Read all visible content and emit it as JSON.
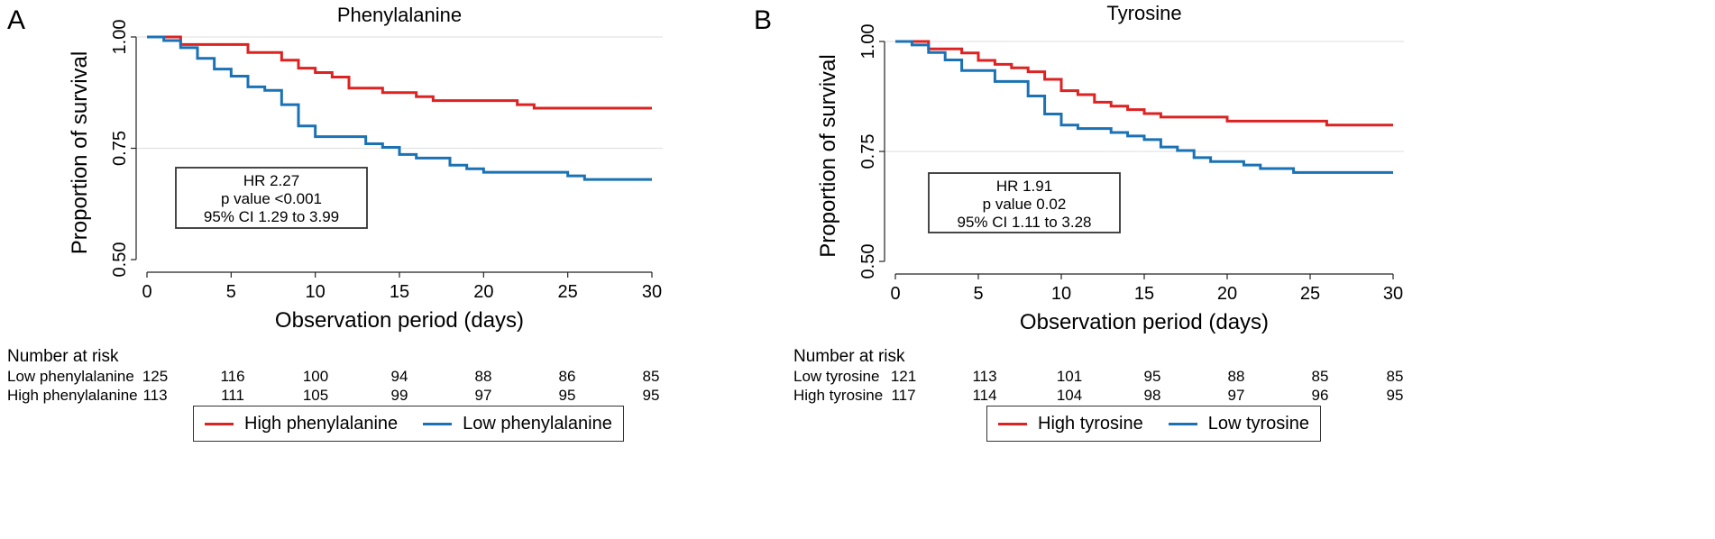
{
  "chart_data": [
    {
      "type": "line",
      "panel_letter": "A",
      "title": "Phenylalanine",
      "xlabel": "Observation period (days)",
      "ylabel": "Proportion of survival",
      "xlim": [
        0,
        30
      ],
      "ylim": [
        0.5,
        1.0
      ],
      "x_ticks": [
        0,
        5,
        10,
        15,
        20,
        25,
        30
      ],
      "y_ticks": [
        0.5,
        0.75,
        1.0
      ],
      "y_tick_labels": [
        "0.50",
        "0.75",
        "1.00"
      ],
      "gridlines": "horizontal",
      "annotation": [
        "HR 2.27",
        "p value <0.001",
        "95% CI  1.29 to 3.99"
      ],
      "series": [
        {
          "name": "High phenylalanine",
          "color": "#dd2222",
          "steps": [
            [
              0,
              1.0
            ],
            [
              2,
              0.983
            ],
            [
              6,
              0.965
            ],
            [
              8,
              0.948
            ],
            [
              9,
              0.93
            ],
            [
              10,
              0.92
            ],
            [
              11,
              0.91
            ],
            [
              12,
              0.885
            ],
            [
              14,
              0.875
            ],
            [
              16,
              0.866
            ],
            [
              17,
              0.857
            ],
            [
              22,
              0.848
            ],
            [
              23,
              0.84
            ],
            [
              30,
              0.84
            ]
          ]
        },
        {
          "name": "Low phenylalanine",
          "color": "#1a72b5",
          "steps": [
            [
              0,
              1.0
            ],
            [
              1,
              0.992
            ],
            [
              2,
              0.976
            ],
            [
              3,
              0.952
            ],
            [
              4,
              0.928
            ],
            [
              5,
              0.912
            ],
            [
              6,
              0.888
            ],
            [
              7,
              0.88
            ],
            [
              8,
              0.848
            ],
            [
              9,
              0.8
            ],
            [
              10,
              0.776
            ],
            [
              13,
              0.76
            ],
            [
              14,
              0.752
            ],
            [
              15,
              0.736
            ],
            [
              16,
              0.728
            ],
            [
              18,
              0.712
            ],
            [
              19,
              0.704
            ],
            [
              20,
              0.696
            ],
            [
              25,
              0.688
            ],
            [
              26,
              0.68
            ],
            [
              30,
              0.68
            ]
          ]
        }
      ],
      "risk_table": {
        "header": "Number at risk",
        "rows": [
          {
            "label": "Low phenylalanine",
            "values": [
              "125",
              "116",
              "100",
              "94",
              "88",
              "86",
              "85"
            ]
          },
          {
            "label": "High phenylalanine",
            "values": [
              "113",
              "111",
              "105",
              "99",
              "97",
              "95",
              "95"
            ]
          }
        ]
      },
      "legend": [
        {
          "label": "High phenylalanine",
          "color": "#dd2222"
        },
        {
          "label": "Low phenylalanine",
          "color": "#1a72b5"
        }
      ]
    },
    {
      "type": "line",
      "panel_letter": "B",
      "title": "Tyrosine",
      "xlabel": "Observation period (days)",
      "ylabel": "Proportion of survival",
      "xlim": [
        0,
        30
      ],
      "ylim": [
        0.5,
        1.0
      ],
      "x_ticks": [
        0,
        5,
        10,
        15,
        20,
        25,
        30
      ],
      "y_ticks": [
        0.5,
        0.75,
        1.0
      ],
      "y_tick_labels": [
        "0.50",
        "0.75",
        "1.00"
      ],
      "gridlines": "horizontal",
      "annotation": [
        "HR 1.91",
        "p value 0.02",
        "95% CI  1.11 to 3.28"
      ],
      "series": [
        {
          "name": "High tyrosine",
          "color": "#dd2222",
          "steps": [
            [
              0,
              1.0
            ],
            [
              2,
              0.983
            ],
            [
              4,
              0.974
            ],
            [
              5,
              0.957
            ],
            [
              6,
              0.948
            ],
            [
              7,
              0.94
            ],
            [
              8,
              0.931
            ],
            [
              9,
              0.914
            ],
            [
              10,
              0.888
            ],
            [
              11,
              0.879
            ],
            [
              12,
              0.862
            ],
            [
              13,
              0.853
            ],
            [
              14,
              0.845
            ],
            [
              15,
              0.836
            ],
            [
              16,
              0.828
            ],
            [
              20,
              0.819
            ],
            [
              26,
              0.81
            ],
            [
              30,
              0.81
            ]
          ]
        },
        {
          "name": "Low tyrosine",
          "color": "#1a72b5",
          "steps": [
            [
              0,
              1.0
            ],
            [
              1,
              0.992
            ],
            [
              2,
              0.975
            ],
            [
              3,
              0.958
            ],
            [
              4,
              0.934
            ],
            [
              6,
              0.909
            ],
            [
              8,
              0.876
            ],
            [
              9,
              0.835
            ],
            [
              10,
              0.81
            ],
            [
              11,
              0.802
            ],
            [
              13,
              0.793
            ],
            [
              14,
              0.785
            ],
            [
              15,
              0.777
            ],
            [
              16,
              0.76
            ],
            [
              17,
              0.752
            ],
            [
              18,
              0.736
            ],
            [
              19,
              0.727
            ],
            [
              21,
              0.719
            ],
            [
              22,
              0.711
            ],
            [
              24,
              0.702
            ],
            [
              30,
              0.702
            ]
          ]
        }
      ],
      "risk_table": {
        "header": "Number at risk",
        "rows": [
          {
            "label": "Low tyrosine",
            "values": [
              "121",
              "113",
              "101",
              "95",
              "88",
              "85",
              "85"
            ]
          },
          {
            "label": "High tyrosine",
            "values": [
              "117",
              "114",
              "104",
              "98",
              "97",
              "96",
              "95"
            ]
          }
        ]
      },
      "legend": [
        {
          "label": "High tyrosine",
          "color": "#dd2222"
        },
        {
          "label": "Low tyrosine",
          "color": "#1a72b5"
        }
      ]
    }
  ]
}
